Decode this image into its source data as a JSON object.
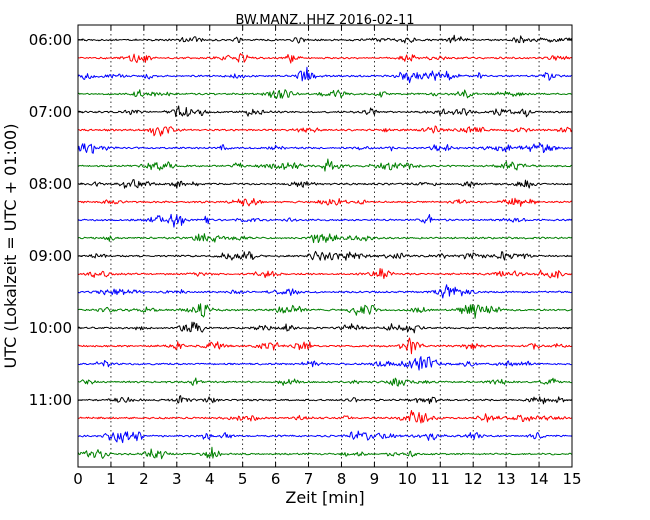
{
  "chart_data": {
    "type": "line",
    "subtype": "dayplot-helicorder",
    "title": "BW.MANZ..HHZ 2016-02-11",
    "xlabel": "Zeit  [min]",
    "ylabel": "UTC (Lokalzeit = UTC + 01:00)",
    "xlim": [
      0,
      15
    ],
    "x_ticks": [
      "0",
      "1",
      "2",
      "3",
      "4",
      "5",
      "6",
      "7",
      "8",
      "9",
      "10",
      "11",
      "12",
      "13",
      "14",
      "15"
    ],
    "y_tick_labels": [
      "06:00",
      "07:00",
      "08:00",
      "09:00",
      "10:00",
      "11:00"
    ],
    "y_tick_row_index": [
      0,
      4,
      8,
      12,
      16,
      20
    ],
    "rows_count": 24,
    "row_interval_min": 15,
    "start_time": "06:00",
    "grid": "vertical dotted at each minute",
    "series_colors": [
      "#000000",
      "#ff0000",
      "#0000ff",
      "#008000"
    ]
  }
}
